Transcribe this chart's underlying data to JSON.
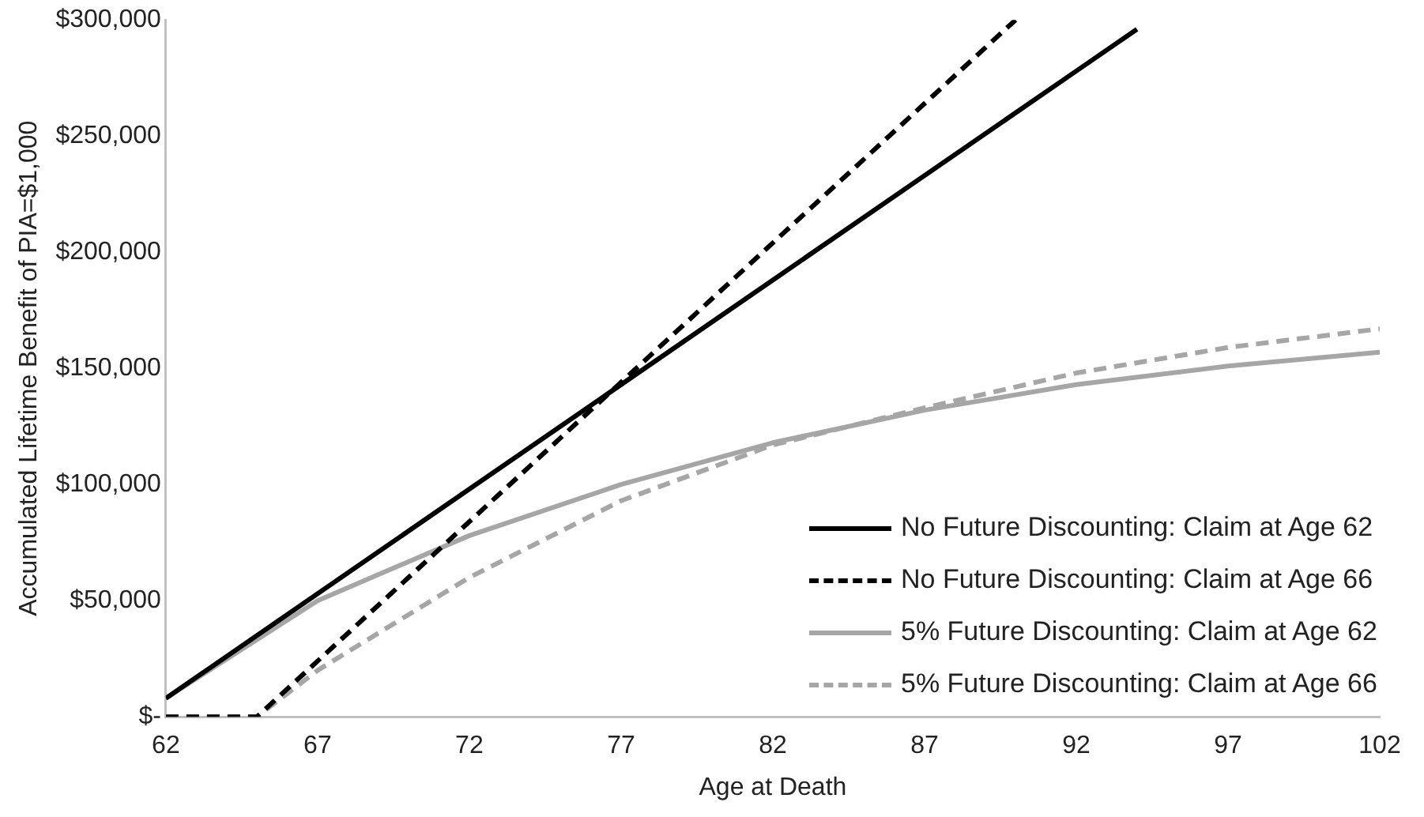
{
  "chart_data": {
    "type": "line",
    "xlabel": "Age at Death",
    "ylabel": "Accumulated Lifetime Benefit of PIA=$1,000",
    "xlim": [
      62,
      102
    ],
    "xticks": [
      62,
      67,
      72,
      77,
      82,
      87,
      92,
      97,
      102
    ],
    "ylim": [
      0,
      300000
    ],
    "yticks": [
      {
        "value": 0,
        "label": "$-"
      },
      {
        "value": 50000,
        "label": "$50,000"
      },
      {
        "value": 100000,
        "label": "$100,000"
      },
      {
        "value": 150000,
        "label": "$150,000"
      },
      {
        "value": 200000,
        "label": "$200,000"
      },
      {
        "value": 250000,
        "label": "$250,000"
      },
      {
        "value": 300000,
        "label": "$300,000"
      }
    ],
    "grid": false,
    "legend": "bottom right",
    "marker": "none",
    "series": [
      {
        "name": "No Future Discounting: Claim at Age 62",
        "color": "#000000",
        "line_style": "solid",
        "x": [
          62,
          72,
          82,
          92,
          94
        ],
        "values": [
          8000,
          98000,
          188000,
          278000,
          296000
        ]
      },
      {
        "name": "No Future Discounting: Claim at Age 66",
        "color": "#000000",
        "line_style": "dashed",
        "x": [
          62,
          65,
          70,
          75,
          80,
          85,
          90
        ],
        "values": [
          0,
          0,
          60000,
          120000,
          180000,
          240000,
          300000
        ]
      },
      {
        "name": "5% Future Discounting: Claim at Age 62",
        "color": "#a6a6a6",
        "line_style": "solid",
        "x": [
          62,
          67,
          72,
          77,
          82,
          87,
          92,
          97,
          102
        ],
        "values": [
          8000,
          50000,
          78000,
          100000,
          118000,
          132000,
          143000,
          151000,
          157000
        ]
      },
      {
        "name": "5% Future Discounting: Claim at Age 66",
        "color": "#a6a6a6",
        "line_style": "dashed",
        "x": [
          62,
          65,
          66,
          67,
          72,
          77,
          82,
          87,
          92,
          97,
          102
        ],
        "values": [
          0,
          0,
          10000,
          20000,
          60000,
          93000,
          117000,
          133000,
          148000,
          159000,
          167000
        ]
      }
    ]
  }
}
